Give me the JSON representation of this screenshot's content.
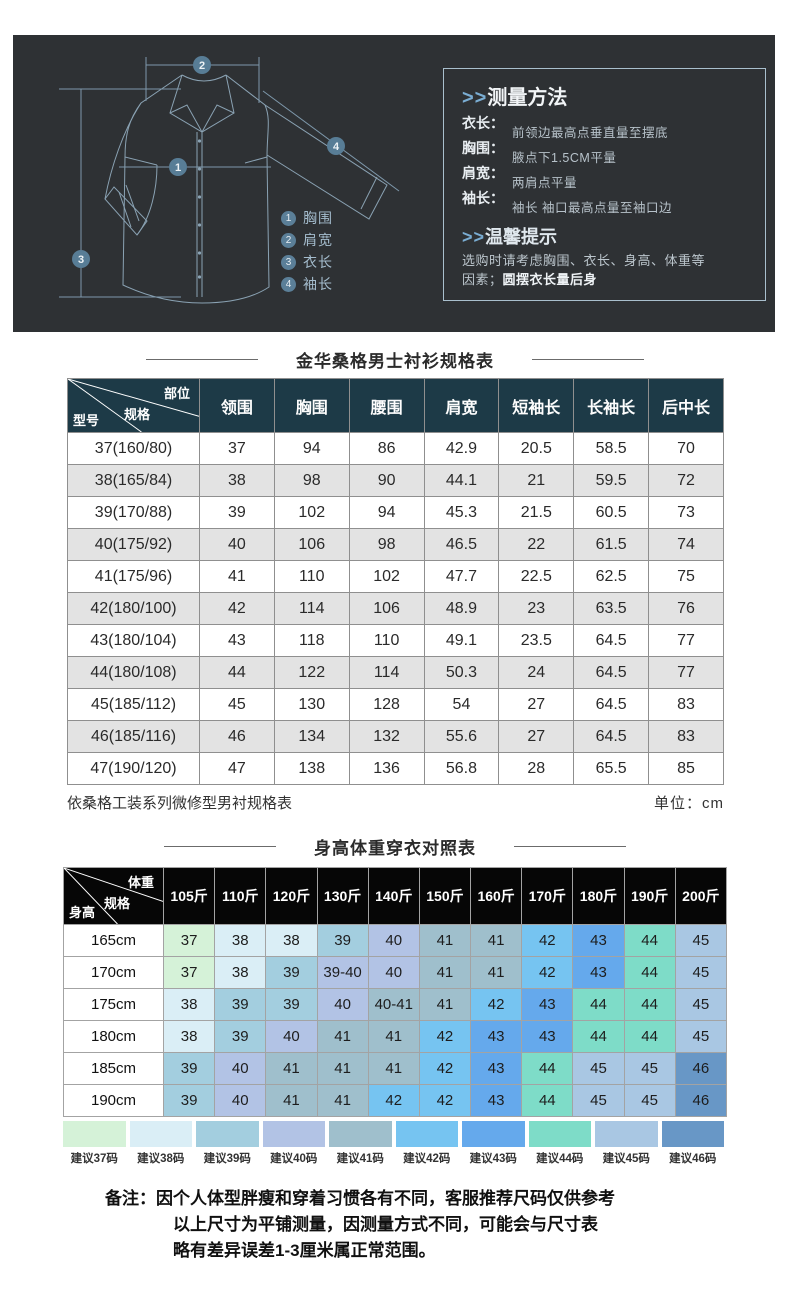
{
  "measure_panel": {
    "arrows": ">>",
    "title": "测量方法",
    "items": [
      {
        "label": "衣长：",
        "desc": "前领边最高点垂直量至摆底"
      },
      {
        "label": "胸围：",
        "desc": "腋点下1.5CM平量"
      },
      {
        "label": "肩宽：",
        "desc": "两肩点平量"
      },
      {
        "label": "袖长：",
        "desc": "袖长  袖口最高点量至袖口边"
      }
    ],
    "tips_title": "温馨提示",
    "tips_line1": "选购时请考虑胸围、衣长、身高、体重等",
    "tips_line2_prefix": "因素；",
    "tips_line2_bold": "圆摆衣长量后身",
    "diagram_legend": [
      {
        "num": "1",
        "label": "胸围"
      },
      {
        "num": "2",
        "label": "肩宽"
      },
      {
        "num": "3",
        "label": "衣长"
      },
      {
        "num": "4",
        "label": "袖长"
      }
    ]
  },
  "size_table": {
    "title": "金华桑格男士衬衫规格表",
    "corner": {
      "top": "部位",
      "mid": "规格",
      "bottom": "型号"
    },
    "columns": [
      "领围",
      "胸围",
      "腰围",
      "肩宽",
      "短袖长",
      "长袖长",
      "后中长"
    ],
    "rows": [
      {
        "model": "37(160/80)",
        "values": [
          "37",
          "94",
          "86",
          "42.9",
          "20.5",
          "58.5",
          "70"
        ]
      },
      {
        "model": "38(165/84)",
        "values": [
          "38",
          "98",
          "90",
          "44.1",
          "21",
          "59.5",
          "72"
        ]
      },
      {
        "model": "39(170/88)",
        "values": [
          "39",
          "102",
          "94",
          "45.3",
          "21.5",
          "60.5",
          "73"
        ]
      },
      {
        "model": "40(175/92)",
        "values": [
          "40",
          "106",
          "98",
          "46.5",
          "22",
          "61.5",
          "74"
        ]
      },
      {
        "model": "41(175/96)",
        "values": [
          "41",
          "110",
          "102",
          "47.7",
          "22.5",
          "62.5",
          "75"
        ]
      },
      {
        "model": "42(180/100)",
        "values": [
          "42",
          "114",
          "106",
          "48.9",
          "23",
          "63.5",
          "76"
        ]
      },
      {
        "model": "43(180/104)",
        "values": [
          "43",
          "118",
          "110",
          "49.1",
          "23.5",
          "64.5",
          "77"
        ]
      },
      {
        "model": "44(180/108)",
        "values": [
          "44",
          "122",
          "114",
          "50.3",
          "24",
          "64.5",
          "77"
        ]
      },
      {
        "model": "45(185/112)",
        "values": [
          "45",
          "130",
          "128",
          "54",
          "27",
          "64.5",
          "83"
        ]
      },
      {
        "model": "46(185/116)",
        "values": [
          "46",
          "134",
          "132",
          "55.6",
          "27",
          "64.5",
          "83"
        ]
      },
      {
        "model": "47(190/120)",
        "values": [
          "47",
          "138",
          "136",
          "56.8",
          "28",
          "65.5",
          "85"
        ]
      }
    ],
    "footnote_left": "依桑格工装系列微修型男衬规格表",
    "footnote_right": "单位：cm"
  },
  "fit_table": {
    "title": "身高体重穿衣对照表",
    "corner": {
      "top": "体重",
      "mid": "规格",
      "bottom": "身高"
    },
    "columns": [
      "105斤",
      "110斤",
      "120斤",
      "130斤",
      "140斤",
      "150斤",
      "160斤",
      "170斤",
      "180斤",
      "190斤",
      "200斤"
    ],
    "size_colors": {
      "37": "#d5f2d8",
      "38": "#daeef6",
      "39": "#a3cedf",
      "40": "#b2c3e5",
      "41": "#9fbfcc",
      "42": "#76c4f1",
      "43": "#65a9ec",
      "44": "#7edcc8",
      "45": "#a9c7e3",
      "46": "#6897c6"
    },
    "rows": [
      {
        "height": "165cm",
        "cells": [
          {
            "v": "37",
            "k": "37"
          },
          {
            "v": "38",
            "k": "38"
          },
          {
            "v": "38",
            "k": "38"
          },
          {
            "v": "39",
            "k": "39"
          },
          {
            "v": "40",
            "k": "40"
          },
          {
            "v": "41",
            "k": "41"
          },
          {
            "v": "41",
            "k": "41"
          },
          {
            "v": "42",
            "k": "42"
          },
          {
            "v": "43",
            "k": "43"
          },
          {
            "v": "44",
            "k": "44"
          },
          {
            "v": "45",
            "k": "45"
          }
        ]
      },
      {
        "height": "170cm",
        "cells": [
          {
            "v": "37",
            "k": "37"
          },
          {
            "v": "38",
            "k": "38"
          },
          {
            "v": "39",
            "k": "39"
          },
          {
            "v": "39-40",
            "k": "40"
          },
          {
            "v": "40",
            "k": "40"
          },
          {
            "v": "41",
            "k": "41"
          },
          {
            "v": "41",
            "k": "41"
          },
          {
            "v": "42",
            "k": "42"
          },
          {
            "v": "43",
            "k": "43"
          },
          {
            "v": "44",
            "k": "44"
          },
          {
            "v": "45",
            "k": "45"
          }
        ]
      },
      {
        "height": "175cm",
        "cells": [
          {
            "v": "38",
            "k": "38"
          },
          {
            "v": "39",
            "k": "39"
          },
          {
            "v": "39",
            "k": "39"
          },
          {
            "v": "40",
            "k": "40"
          },
          {
            "v": "40-41",
            "k": "41"
          },
          {
            "v": "41",
            "k": "41"
          },
          {
            "v": "42",
            "k": "42"
          },
          {
            "v": "43",
            "k": "43"
          },
          {
            "v": "44",
            "k": "44"
          },
          {
            "v": "44",
            "k": "44"
          },
          {
            "v": "45",
            "k": "45"
          }
        ]
      },
      {
        "height": "180cm",
        "cells": [
          {
            "v": "38",
            "k": "38"
          },
          {
            "v": "39",
            "k": "39"
          },
          {
            "v": "40",
            "k": "40"
          },
          {
            "v": "41",
            "k": "41"
          },
          {
            "v": "41",
            "k": "41"
          },
          {
            "v": "42",
            "k": "42"
          },
          {
            "v": "43",
            "k": "43"
          },
          {
            "v": "43",
            "k": "43"
          },
          {
            "v": "44",
            "k": "44"
          },
          {
            "v": "44",
            "k": "44"
          },
          {
            "v": "45",
            "k": "45"
          }
        ]
      },
      {
        "height": "185cm",
        "cells": [
          {
            "v": "39",
            "k": "39"
          },
          {
            "v": "40",
            "k": "40"
          },
          {
            "v": "41",
            "k": "41"
          },
          {
            "v": "41",
            "k": "41"
          },
          {
            "v": "41",
            "k": "41"
          },
          {
            "v": "42",
            "k": "42"
          },
          {
            "v": "43",
            "k": "43"
          },
          {
            "v": "44",
            "k": "44"
          },
          {
            "v": "45",
            "k": "45"
          },
          {
            "v": "45",
            "k": "45"
          },
          {
            "v": "46",
            "k": "46"
          }
        ]
      },
      {
        "height": "190cm",
        "cells": [
          {
            "v": "39",
            "k": "39"
          },
          {
            "v": "40",
            "k": "40"
          },
          {
            "v": "41",
            "k": "41"
          },
          {
            "v": "41",
            "k": "41"
          },
          {
            "v": "42",
            "k": "42"
          },
          {
            "v": "42",
            "k": "42"
          },
          {
            "v": "43",
            "k": "43"
          },
          {
            "v": "44",
            "k": "44"
          },
          {
            "v": "45",
            "k": "45"
          },
          {
            "v": "45",
            "k": "45"
          },
          {
            "v": "46",
            "k": "46"
          }
        ]
      }
    ],
    "legend": [
      {
        "label": "建议37码",
        "k": "37"
      },
      {
        "label": "建议38码",
        "k": "38"
      },
      {
        "label": "建议39码",
        "k": "39"
      },
      {
        "label": "建议40码",
        "k": "40"
      },
      {
        "label": "建议41码",
        "k": "41"
      },
      {
        "label": "建议42码",
        "k": "42"
      },
      {
        "label": "建议43码",
        "k": "43"
      },
      {
        "label": "建议44码",
        "k": "44"
      },
      {
        "label": "建议45码",
        "k": "45"
      },
      {
        "label": "建议46码",
        "k": "46"
      }
    ]
  },
  "notes": {
    "label": "备注：",
    "line1": "因个人体型胖瘦和穿着习惯各有不同，客服推荐尺码仅供参考",
    "line2": "以上尺寸为平铺测量，因测量方式不同，可能会与尺寸表",
    "line3": "略有差异误差1-3厘米属正常范围。"
  }
}
